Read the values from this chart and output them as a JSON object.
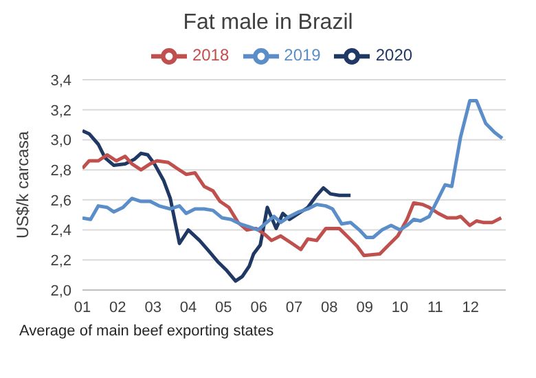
{
  "chart_data": {
    "type": "line",
    "title": "Fat male in Brazil",
    "ylabel": "US$/k carcasa",
    "annotations": [
      "Average of main beef exporting states"
    ],
    "xlim": [
      1,
      13
    ],
    "xticks": [
      {
        "value": 1,
        "label": "01"
      },
      {
        "value": 2,
        "label": "02"
      },
      {
        "value": 3,
        "label": "03"
      },
      {
        "value": 4,
        "label": "04"
      },
      {
        "value": 5,
        "label": "05"
      },
      {
        "value": 6,
        "label": "06"
      },
      {
        "value": 7,
        "label": "07"
      },
      {
        "value": 8,
        "label": "08"
      },
      {
        "value": 9,
        "label": "09"
      },
      {
        "value": 10,
        "label": "10"
      },
      {
        "value": 11,
        "label": "11"
      },
      {
        "value": 12,
        "label": "12"
      }
    ],
    "ylim": [
      2.0,
      3.4
    ],
    "yticks": [
      {
        "value": 2.0,
        "label": "2,0"
      },
      {
        "value": 2.2,
        "label": "2,2"
      },
      {
        "value": 2.4,
        "label": "2,4"
      },
      {
        "value": 2.6,
        "label": "2,6"
      },
      {
        "value": 2.8,
        "label": "2,8"
      },
      {
        "value": 3.0,
        "label": "3,0"
      },
      {
        "value": 3.2,
        "label": "3,2"
      },
      {
        "value": 3.4,
        "label": "3,4"
      }
    ],
    "grid": "y",
    "legend": "top",
    "marker": "none",
    "line_style": "solid",
    "series": [
      {
        "name": "2020",
        "color": "#1f3864",
        "x": [
          1.0,
          1.19,
          1.45,
          1.64,
          1.89,
          2.21,
          2.47,
          2.66,
          2.85,
          3.04,
          3.3,
          3.49,
          3.75,
          4.0,
          4.32,
          4.58,
          4.83,
          5.09,
          5.34,
          5.53,
          5.73,
          5.85,
          6.04,
          6.24,
          6.49,
          6.68,
          6.87,
          7.13,
          7.39,
          7.64,
          7.83,
          8.03,
          8.28,
          8.6
        ],
        "values": [
          3.06,
          3.04,
          2.97,
          2.88,
          2.83,
          2.84,
          2.87,
          2.91,
          2.9,
          2.84,
          2.73,
          2.61,
          2.31,
          2.4,
          2.33,
          2.26,
          2.19,
          2.13,
          2.06,
          2.09,
          2.16,
          2.24,
          2.3,
          2.55,
          2.41,
          2.51,
          2.47,
          2.51,
          2.55,
          2.63,
          2.68,
          2.64,
          2.63,
          2.63
        ]
      },
      {
        "name": "2018",
        "color": "#c0504d",
        "x": [
          1.0,
          1.19,
          1.45,
          1.7,
          1.96,
          2.21,
          2.4,
          2.66,
          2.92,
          3.11,
          3.43,
          3.68,
          3.94,
          4.19,
          4.45,
          4.7,
          4.9,
          5.15,
          5.41,
          5.66,
          5.92,
          6.17,
          6.36,
          6.62,
          6.94,
          7.19,
          7.39,
          7.64,
          7.9,
          8.28,
          8.54,
          8.79,
          8.98,
          9.43,
          9.68,
          9.94,
          10.2,
          10.39,
          10.64,
          10.83,
          11.09,
          11.34,
          11.6,
          11.72,
          11.98,
          12.17,
          12.36,
          12.62,
          12.87
        ],
        "values": [
          2.81,
          2.86,
          2.86,
          2.9,
          2.86,
          2.89,
          2.84,
          2.8,
          2.84,
          2.86,
          2.85,
          2.81,
          2.77,
          2.78,
          2.69,
          2.66,
          2.59,
          2.55,
          2.45,
          2.4,
          2.41,
          2.37,
          2.33,
          2.36,
          2.31,
          2.27,
          2.34,
          2.33,
          2.41,
          2.41,
          2.35,
          2.29,
          2.23,
          2.24,
          2.3,
          2.36,
          2.47,
          2.58,
          2.57,
          2.55,
          2.51,
          2.48,
          2.48,
          2.49,
          2.43,
          2.46,
          2.45,
          2.45,
          2.48
        ]
      },
      {
        "name": "2019",
        "color": "#5b8ec9",
        "x": [
          1.0,
          1.23,
          1.45,
          1.7,
          1.89,
          2.15,
          2.4,
          2.66,
          2.92,
          3.17,
          3.49,
          3.75,
          3.94,
          4.19,
          4.45,
          4.7,
          4.96,
          5.21,
          5.47,
          5.73,
          5.98,
          6.17,
          6.43,
          6.62,
          6.87,
          7.13,
          7.39,
          7.64,
          7.9,
          8.09,
          8.35,
          8.6,
          8.85,
          9.05,
          9.24,
          9.49,
          9.75,
          10.0,
          10.2,
          10.39,
          10.58,
          10.83,
          11.09,
          11.28,
          11.47,
          11.72,
          11.98,
          12.17,
          12.43,
          12.68,
          12.9
        ],
        "values": [
          2.48,
          2.47,
          2.56,
          2.55,
          2.52,
          2.55,
          2.61,
          2.59,
          2.59,
          2.56,
          2.54,
          2.56,
          2.51,
          2.54,
          2.54,
          2.53,
          2.48,
          2.47,
          2.44,
          2.42,
          2.4,
          2.44,
          2.49,
          2.45,
          2.49,
          2.52,
          2.54,
          2.57,
          2.56,
          2.54,
          2.44,
          2.45,
          2.4,
          2.35,
          2.35,
          2.4,
          2.43,
          2.4,
          2.43,
          2.47,
          2.46,
          2.49,
          2.61,
          2.7,
          2.69,
          3.02,
          3.26,
          3.26,
          3.11,
          3.05,
          3.01
        ]
      }
    ]
  }
}
